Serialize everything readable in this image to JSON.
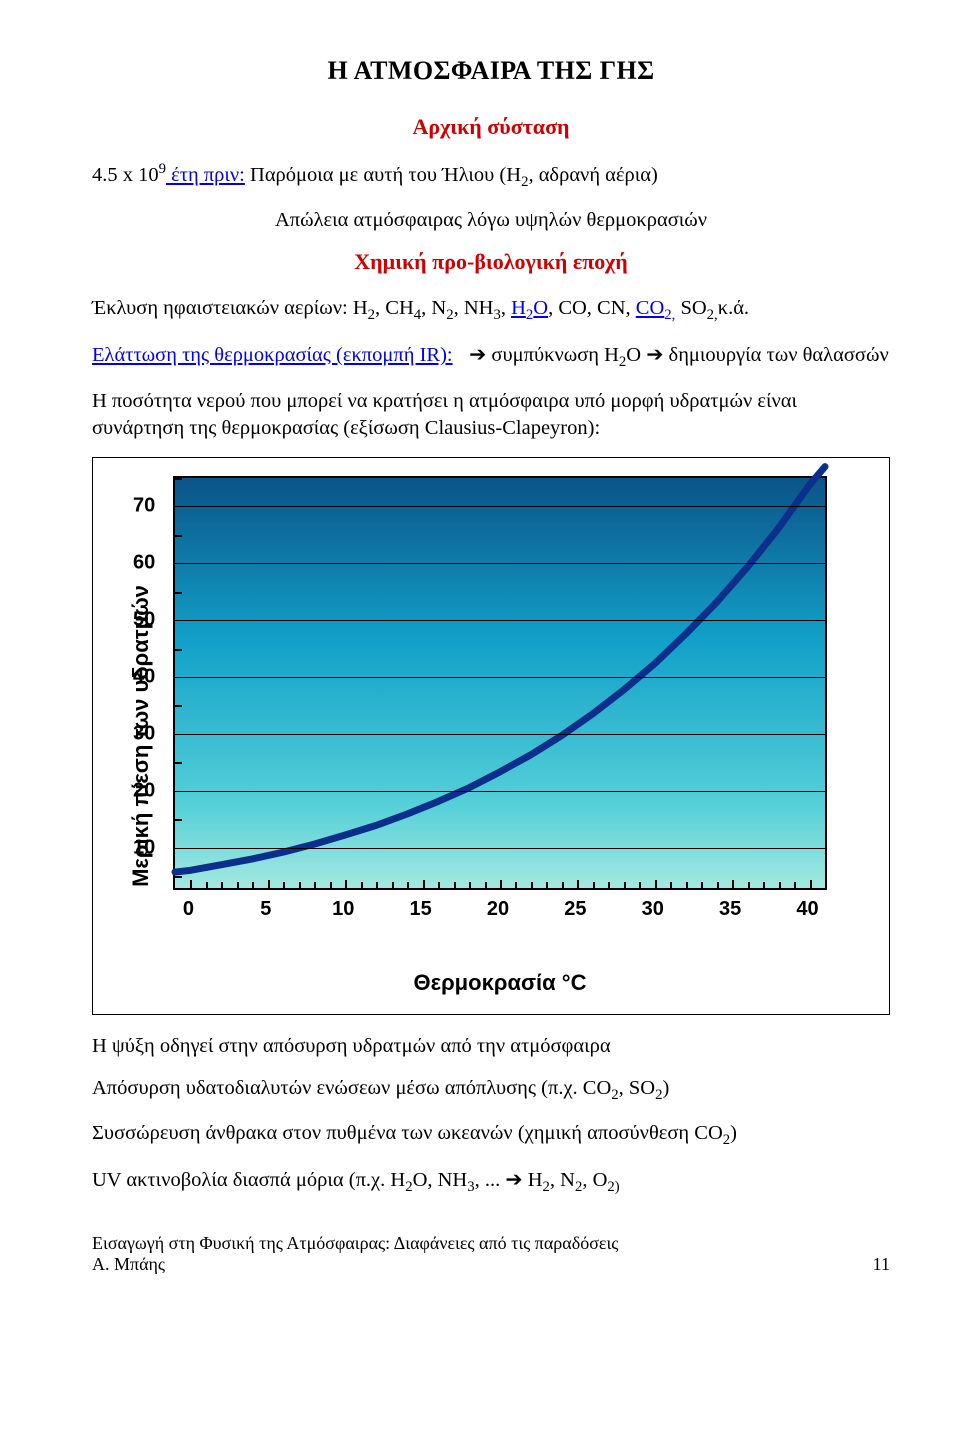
{
  "title": "Η ΑΤΜΟΣΦΑΙΡΑ ΤΗΣ ΓΗΣ",
  "subtitle_initial": "Αρχική σύσταση",
  "line_age_a": "4.5 x 10",
  "line_age_sup": "9",
  "line_age_b": " έτη πριν:",
  "line_age_c": " Παρόμοια με αυτή του Ήλιου (H",
  "line_age_d": ", αδρανή αέρια)",
  "line_loss": "Aπώλεια ατμόσφαιρας λόγω υψηλών θερμοκρασιών",
  "subtitle_chem": "Χημική προ-βιολογική εποχή",
  "volcanic_a": "Έκλυση ηφαιστειακών αερίων: H",
  "volcanic_b": ", CH",
  "volcanic_c": ", N",
  "volcanic_d": ", NH",
  "volcanic_e": ", ",
  "volcanic_h2o": "H",
  "volcanic_o": "O",
  "volcanic_f": ", CO, CN, ",
  "volcanic_co2": "CO",
  "volcanic_g": " SO",
  "volcanic_h": "κ.ά.",
  "ir_a": "Ελάττωση της θερμοκρασίας (εκπομπή IR):",
  "ir_b": "   συμπύκνωση H",
  "ir_c": "O   ",
  "ir_d": "   δημιουργία των θαλασσών",
  "para_cc": "H ποσότητα νερού που μπορεί να κρατήσει η ατμόσφαιρα υπό μορφή υδρατμών είναι συνάρτηση της θερμοκρασίας (εξίσωση Clausius-Clapeyron):",
  "chart": {
    "ylabel": "Μερική πίεση των υδρατμών",
    "xlabel": "Θερμοκρασία °C",
    "ylim": [
      3,
      75
    ],
    "xlim": [
      -1,
      41
    ],
    "yticks": [
      10,
      20,
      30,
      40,
      50,
      60,
      70
    ],
    "ygrid": [
      10,
      20,
      30,
      40,
      50,
      60,
      70
    ],
    "yminor": [
      5,
      15,
      25,
      35,
      45,
      55,
      65,
      75
    ],
    "xticks": [
      0,
      5,
      10,
      15,
      20,
      25,
      30,
      35,
      40
    ],
    "xminor": [
      1,
      2,
      3,
      4,
      6,
      7,
      8,
      9,
      11,
      12,
      13,
      14,
      16,
      17,
      18,
      19,
      21,
      22,
      23,
      24,
      26,
      27,
      28,
      29,
      31,
      32,
      33,
      34,
      36,
      37,
      38,
      39
    ],
    "curve_color": "#0b2f8a",
    "curve_width": 7,
    "points": [
      [
        -1,
        5.8
      ],
      [
        0,
        6.1
      ],
      [
        2,
        7.1
      ],
      [
        4,
        8.1
      ],
      [
        6,
        9.3
      ],
      [
        8,
        10.7
      ],
      [
        10,
        12.3
      ],
      [
        12,
        14.0
      ],
      [
        14,
        16.0
      ],
      [
        16,
        18.2
      ],
      [
        18,
        20.6
      ],
      [
        20,
        23.4
      ],
      [
        22,
        26.4
      ],
      [
        24,
        29.8
      ],
      [
        26,
        33.6
      ],
      [
        28,
        37.8
      ],
      [
        30,
        42.4
      ],
      [
        32,
        47.6
      ],
      [
        34,
        53.2
      ],
      [
        36,
        59.4
      ],
      [
        38,
        66.2
      ],
      [
        40,
        73.8
      ],
      [
        41,
        77.0
      ]
    ]
  },
  "after1": "Η ψύξη οδηγεί στην απόσυρση υδρατμών από την ατμόσφαιρα",
  "after2_a": "Απόσυρση υδατοδιαλυτών ενώσεων μέσω απόπλυσης (π.χ. CO",
  "after2_b": ", SO",
  "after2_c": ")",
  "after3_a": "Συσσώρευση άνθρακα στον πυθμένα των ωκεανών (χημική αποσύνθεση CO",
  "after3_b": ")",
  "after4_a": "UV ακτινοβολία διασπά μόρια (π.χ. H",
  "after4_b": "O, NH",
  "after4_c": ", ...   ",
  "after4_d": "   H",
  "after4_e": ", N",
  "after4_f": ", O",
  "footer_a": "Εισαγωγή στη Φυσική της Ατμόσφαιρας: Διαφάνειες από τις παραδόσεις",
  "footer_b": "Α. Μπάης",
  "page_no": "11"
}
